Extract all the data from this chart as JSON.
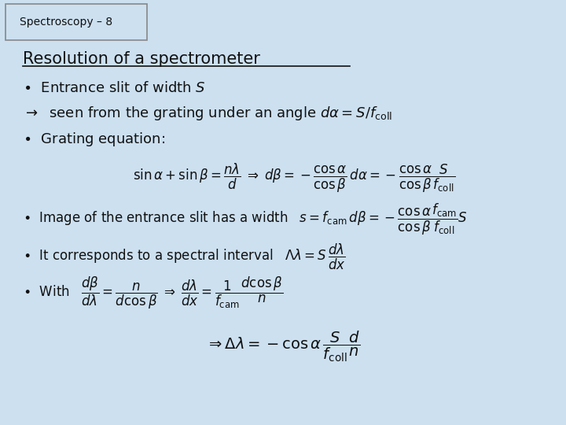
{
  "background_color": "#cce0f0",
  "title_box_text": "Spectroscopy – 8",
  "title_box_border": "#888888",
  "heading": "Resolution of a spectrometer",
  "text_color": "#111111",
  "font_size": 13
}
